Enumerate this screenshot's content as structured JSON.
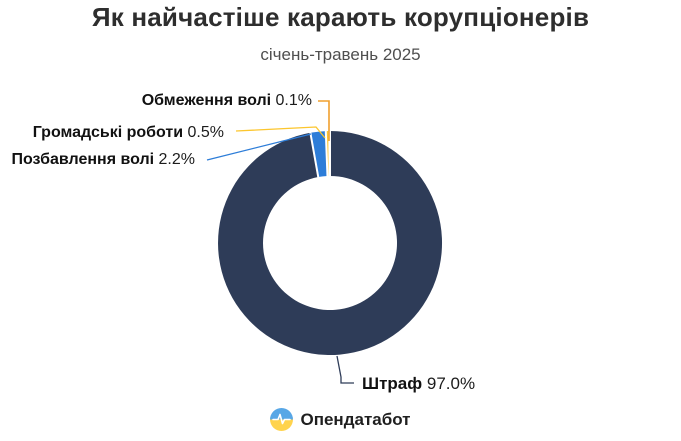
{
  "header": {
    "title": "Як найчастіше карають корупціонерів",
    "subtitle": "січень-травень 2025"
  },
  "chart_data": {
    "type": "pie",
    "variant": "donut",
    "title": "Як найчастіше карають корупціонерів",
    "subtitle": "січень-травень 2025",
    "categories": [
      "Штраф",
      "Позбавлення волі",
      "Громадські роботи",
      "Обмеження волі"
    ],
    "values": [
      97.0,
      2.2,
      0.5,
      0.1
    ],
    "unit": "%",
    "colors": [
      "#2e3c58",
      "#2d7dd8",
      "#fcc62e",
      "#f0a02e"
    ],
    "start_angle_deg": 0,
    "direction": "clockwise",
    "legend_position": "callout-labels",
    "hole_ratio": 0.6
  },
  "callouts": [
    {
      "name": "Обмеження волі",
      "value": "0.1%"
    },
    {
      "name": "Громадські роботи",
      "value": "0.5%"
    },
    {
      "name": "Позбавлення волі",
      "value": "2.2%"
    },
    {
      "name": "Штраф",
      "value": "97.0%"
    }
  ],
  "footer": {
    "brand": "Опендатабот",
    "logo": {
      "blue": "#58a7e6",
      "yellow": "#ffd34d",
      "pulse": "#ffffff"
    }
  }
}
